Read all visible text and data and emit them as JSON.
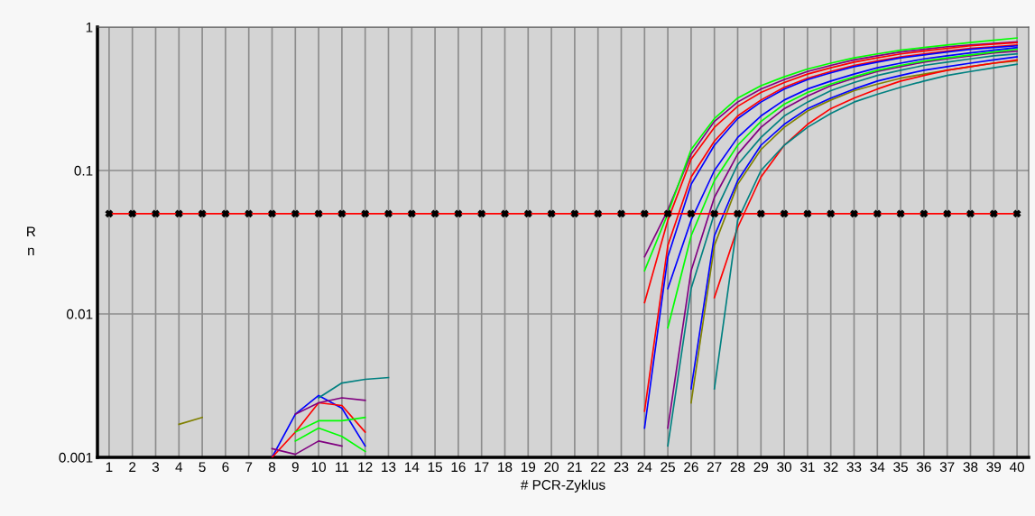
{
  "chart_data": {
    "type": "line",
    "xlabel": "# PCR-Zyklus",
    "ylabel": "Rn",
    "log": "y",
    "xlim": [
      0.5,
      40.5
    ],
    "ylim": [
      0.001,
      1
    ],
    "xticks": [
      1,
      2,
      3,
      4,
      5,
      6,
      7,
      8,
      9,
      10,
      11,
      12,
      13,
      14,
      15,
      16,
      17,
      18,
      19,
      20,
      21,
      22,
      23,
      24,
      25,
      26,
      27,
      28,
      29,
      30,
      31,
      32,
      33,
      34,
      35,
      36,
      37,
      38,
      39,
      40
    ],
    "yticks": [
      0.001,
      0.01,
      0.1,
      1
    ],
    "grid": true,
    "marker": "none",
    "line_style": "solid",
    "series": [
      {
        "color": "#800080",
        "x": [
          24,
          25,
          26,
          27,
          28,
          29,
          30,
          31,
          32,
          33,
          34,
          35,
          36,
          37,
          38,
          39,
          40
        ],
        "values": [
          0.025,
          0.053,
          0.13,
          0.22,
          0.3,
          0.37,
          0.43,
          0.49,
          0.54,
          0.59,
          0.63,
          0.67,
          0.7,
          0.73,
          0.75,
          0.77,
          0.79
        ]
      },
      {
        "color": "#00ff00",
        "x": [
          24,
          25,
          26,
          27,
          28,
          29,
          30,
          31,
          32,
          33,
          34,
          35,
          36,
          37,
          38,
          39,
          40
        ],
        "values": [
          0.02,
          0.05,
          0.14,
          0.23,
          0.32,
          0.39,
          0.45,
          0.51,
          0.56,
          0.61,
          0.65,
          0.69,
          0.72,
          0.75,
          0.78,
          0.81,
          0.84
        ]
      },
      {
        "color": "#ff0000",
        "x": [
          24,
          25,
          26,
          27,
          28,
          29,
          30,
          31,
          32,
          33,
          34,
          35,
          36,
          37,
          38,
          39,
          40
        ],
        "values": [
          0.012,
          0.045,
          0.12,
          0.2,
          0.28,
          0.35,
          0.41,
          0.47,
          0.52,
          0.57,
          0.61,
          0.65,
          0.68,
          0.71,
          0.74,
          0.76,
          0.78
        ]
      },
      {
        "color": "#ff0000",
        "x": [
          24,
          25,
          26,
          27,
          28,
          29,
          30,
          31,
          32,
          33,
          34,
          35,
          36,
          37,
          38,
          39,
          40
        ],
        "values": [
          0.0021,
          0.03,
          0.09,
          0.16,
          0.24,
          0.31,
          0.38,
          0.44,
          0.49,
          0.54,
          0.58,
          0.62,
          0.65,
          0.68,
          0.71,
          0.73,
          0.75
        ]
      },
      {
        "color": "#0000ff",
        "x": [
          24,
          25,
          26,
          27,
          28,
          29,
          30,
          31,
          32,
          33,
          34,
          35,
          36,
          37,
          38,
          39,
          40
        ],
        "values": [
          0.0016,
          0.025,
          0.08,
          0.15,
          0.23,
          0.3,
          0.37,
          0.43,
          0.48,
          0.53,
          0.57,
          0.61,
          0.64,
          0.67,
          0.7,
          0.72,
          0.74
        ]
      },
      {
        "color": "#800080",
        "x": [
          25,
          26,
          27,
          28,
          29,
          30,
          31,
          32,
          33,
          34,
          35,
          36,
          37,
          38,
          39,
          40
        ],
        "values": [
          0.0016,
          0.02,
          0.065,
          0.13,
          0.2,
          0.27,
          0.33,
          0.39,
          0.44,
          0.49,
          0.53,
          0.57,
          0.6,
          0.63,
          0.66,
          0.68
        ]
      },
      {
        "color": "#008080",
        "x": [
          25,
          26,
          27,
          28,
          29,
          30,
          31,
          32,
          33,
          34,
          35,
          36,
          37,
          38,
          39,
          40
        ],
        "values": [
          0.0012,
          0.015,
          0.05,
          0.11,
          0.17,
          0.24,
          0.3,
          0.36,
          0.41,
          0.46,
          0.5,
          0.54,
          0.57,
          0.6,
          0.63,
          0.65
        ]
      },
      {
        "color": "#0000ff",
        "x": [
          25,
          26,
          27,
          28,
          29,
          30,
          31,
          32,
          33,
          34,
          35,
          36,
          37,
          38,
          39,
          40
        ],
        "values": [
          0.015,
          0.045,
          0.1,
          0.17,
          0.24,
          0.31,
          0.37,
          0.42,
          0.47,
          0.52,
          0.56,
          0.6,
          0.63,
          0.66,
          0.69,
          0.72
        ]
      },
      {
        "color": "#00ff00",
        "x": [
          25,
          26,
          27,
          28,
          29,
          30,
          31,
          32,
          33,
          34,
          35,
          36,
          37,
          38,
          39,
          40
        ],
        "values": [
          0.008,
          0.035,
          0.085,
          0.15,
          0.22,
          0.29,
          0.35,
          0.4,
          0.45,
          0.5,
          0.54,
          0.58,
          0.61,
          0.64,
          0.67,
          0.7
        ]
      },
      {
        "color": "#808000",
        "x": [
          26,
          27,
          28,
          29,
          30,
          31,
          32,
          33,
          34,
          35,
          36,
          37,
          38,
          39,
          40
        ],
        "values": [
          0.0024,
          0.03,
          0.08,
          0.14,
          0.2,
          0.26,
          0.31,
          0.36,
          0.4,
          0.44,
          0.47,
          0.5,
          0.53,
          0.56,
          0.58
        ]
      },
      {
        "color": "#0000ff",
        "x": [
          26,
          27,
          28,
          29,
          30,
          31,
          32,
          33,
          34,
          35,
          36,
          37,
          38,
          39,
          40
        ],
        "values": [
          0.003,
          0.035,
          0.085,
          0.15,
          0.21,
          0.27,
          0.32,
          0.37,
          0.42,
          0.46,
          0.5,
          0.53,
          0.56,
          0.59,
          0.62
        ]
      },
      {
        "color": "#ff0000",
        "x": [
          27,
          28,
          29,
          30,
          31,
          32,
          33,
          34,
          35,
          36,
          37,
          38,
          39,
          40
        ],
        "values": [
          0.013,
          0.04,
          0.09,
          0.15,
          0.21,
          0.27,
          0.32,
          0.37,
          0.42,
          0.46,
          0.5,
          0.53,
          0.56,
          0.59
        ]
      },
      {
        "color": "#008080",
        "x": [
          27,
          28,
          29,
          30,
          31,
          32,
          33,
          34,
          35,
          36,
          37,
          38,
          39,
          40
        ],
        "values": [
          0.003,
          0.045,
          0.1,
          0.15,
          0.2,
          0.25,
          0.3,
          0.34,
          0.38,
          0.42,
          0.46,
          0.49,
          0.52,
          0.55
        ]
      },
      {
        "color": "#0000ff",
        "x": [
          8,
          9,
          10,
          11,
          12
        ],
        "values": [
          0.001,
          0.002,
          0.0027,
          0.0022,
          0.0012
        ]
      },
      {
        "color": "#ff0000",
        "x": [
          8,
          9,
          10,
          11,
          12
        ],
        "values": [
          0.001,
          0.0015,
          0.0024,
          0.0023,
          0.0015
        ]
      },
      {
        "color": "#800080",
        "x": [
          9,
          10,
          11,
          12
        ],
        "values": [
          0.002,
          0.0024,
          0.0026,
          0.0025
        ]
      },
      {
        "color": "#00ff00",
        "x": [
          9,
          10,
          11,
          12
        ],
        "values": [
          0.0015,
          0.0018,
          0.0018,
          0.0019
        ]
      },
      {
        "color": "#00ff00",
        "x": [
          9,
          10,
          11,
          12
        ],
        "values": [
          0.0013,
          0.0016,
          0.0014,
          0.0011
        ]
      },
      {
        "color": "#800080",
        "x": [
          8,
          9,
          10,
          11
        ],
        "values": [
          0.00115,
          0.00105,
          0.0013,
          0.0012
        ]
      },
      {
        "color": "#008080",
        "x": [
          10,
          11,
          12,
          13
        ],
        "values": [
          0.0026,
          0.0033,
          0.0035,
          0.0036
        ]
      },
      {
        "color": "#808000",
        "x": [
          4,
          5
        ],
        "values": [
          0.0017,
          0.0019
        ]
      },
      {
        "color": "#ff0000",
        "marker": "cross",
        "x": [
          1,
          2,
          3,
          4,
          5,
          6,
          7,
          8,
          9,
          10,
          11,
          12,
          13,
          14,
          15,
          16,
          17,
          18,
          19,
          20,
          21,
          22,
          23,
          24,
          25,
          26,
          27,
          28,
          29,
          30,
          31,
          32,
          33,
          34,
          35,
          36,
          37,
          38,
          39,
          40
        ],
        "values": [
          0.05,
          0.05,
          0.05,
          0.05,
          0.05,
          0.05,
          0.05,
          0.05,
          0.05,
          0.05,
          0.05,
          0.05,
          0.05,
          0.05,
          0.05,
          0.05,
          0.05,
          0.05,
          0.05,
          0.05,
          0.05,
          0.05,
          0.05,
          0.05,
          0.05,
          0.05,
          0.05,
          0.05,
          0.05,
          0.05,
          0.05,
          0.05,
          0.05,
          0.05,
          0.05,
          0.05,
          0.05,
          0.05,
          0.05,
          0.05
        ]
      }
    ]
  }
}
